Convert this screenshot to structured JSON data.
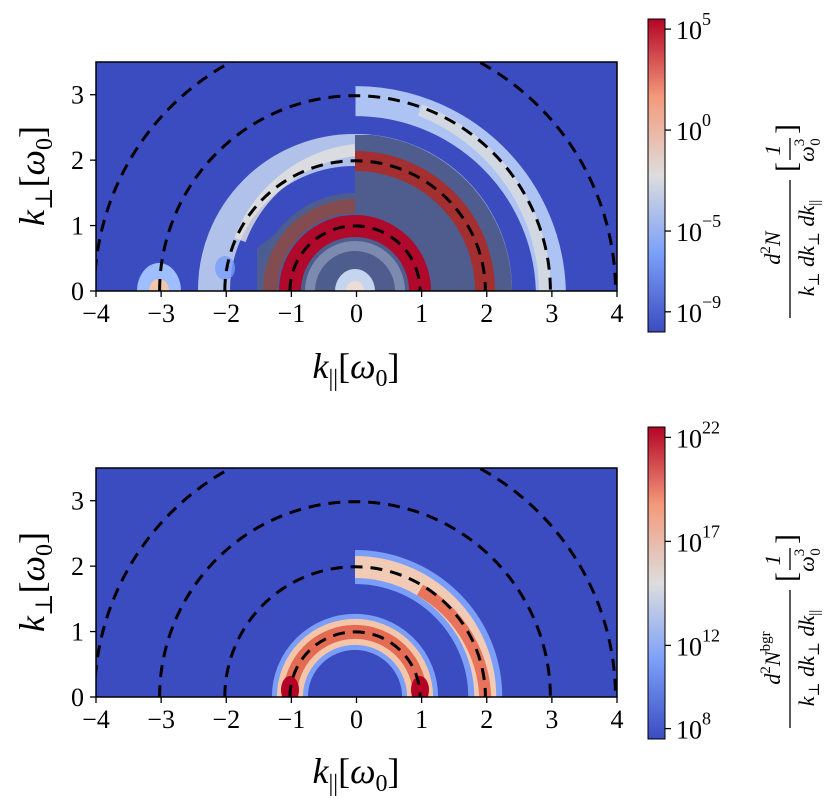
{
  "chart_data": [
    {
      "type": "heatmap",
      "xlabel": "k_{||}[ω_0]",
      "ylabel": "k_⊥[ω_0]",
      "xlim": [
        -4,
        4
      ],
      "ylim": [
        0,
        3.5
      ],
      "xticks": [
        "−4",
        "−3",
        "−2",
        "−1",
        "0",
        "1",
        "2",
        "3",
        "4"
      ],
      "yticks": [
        "0",
        "1",
        "2",
        "3"
      ],
      "color_scale": "log",
      "colormap": "coolwarm",
      "colorbar": {
        "range_log10": [
          -10,
          5.5
        ],
        "ticks": [
          {
            "base": "10",
            "exp": "5",
            "log": 5
          },
          {
            "base": "10",
            "exp": "0",
            "log": 0
          },
          {
            "base": "10",
            "exp": "−5",
            "log": -5
          },
          {
            "base": "10",
            "exp": "−9",
            "log": -9
          }
        ],
        "label": "d²N / (k⊥ dk⊥ dk||) [1/ω0³]"
      },
      "dashed_circles_radius": [
        1,
        2,
        3,
        4
      ],
      "rings": [
        {
          "radius": 1,
          "side": "both",
          "peak_log10": 5
        },
        {
          "radius": 2,
          "side": "both",
          "peak_log10": 3
        },
        {
          "radius": 3,
          "side": "right",
          "peak_log10": -3
        },
        {
          "radius": 2,
          "side": "left-outer",
          "peak_log10": -2
        }
      ],
      "spots": [
        {
          "k_par": -3,
          "k_perp": 0,
          "peak_log10": 1
        }
      ],
      "shaded_region": {
        "k_par_min": -1.5,
        "k_par_max": 1.5,
        "k_perp_max": 2.4
      }
    },
    {
      "type": "heatmap",
      "xlabel": "k_{||}[ω_0]",
      "ylabel": "k_⊥[ω_0]",
      "xlim": [
        -4,
        4
      ],
      "ylim": [
        0,
        3.5
      ],
      "xticks": [
        "−4",
        "−3",
        "−2",
        "−1",
        "0",
        "1",
        "2",
        "3",
        "4"
      ],
      "yticks": [
        "0",
        "1",
        "2",
        "3"
      ],
      "color_scale": "log",
      "colormap": "coolwarm",
      "colorbar": {
        "range_log10": [
          7.5,
          22.5
        ],
        "ticks": [
          {
            "base": "10",
            "exp": "22",
            "log": 22
          },
          {
            "base": "10",
            "exp": "17",
            "log": 17
          },
          {
            "base": "10",
            "exp": "12",
            "log": 12
          },
          {
            "base": "10",
            "exp": "8",
            "log": 8
          }
        ],
        "label": "d²N^bgr / (k⊥ dk⊥ dk||) [1/ω0³]"
      },
      "dashed_circles_radius": [
        1,
        2,
        3,
        4
      ],
      "rings": [
        {
          "radius": 1,
          "side": "both",
          "peak_log10": 22
        },
        {
          "radius": 2,
          "side": "right",
          "peak_log10": 21
        }
      ]
    }
  ]
}
